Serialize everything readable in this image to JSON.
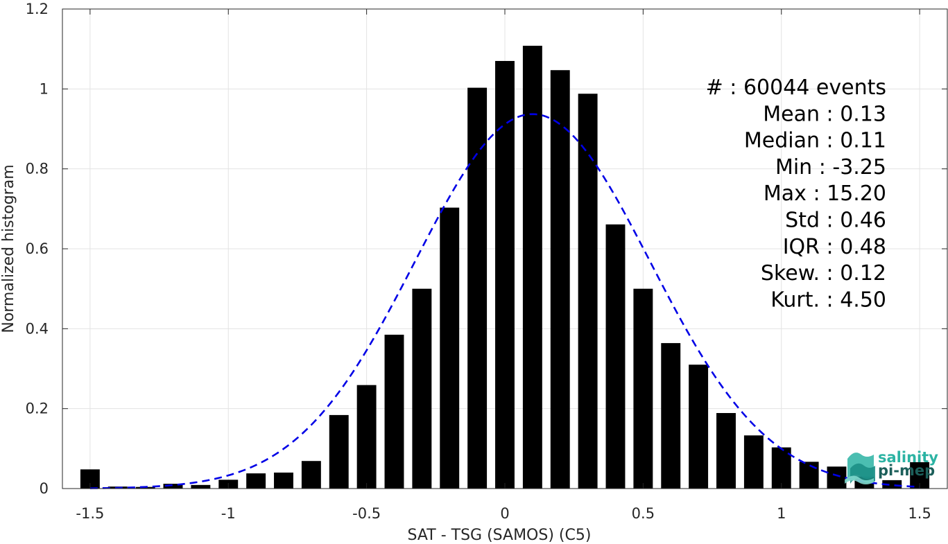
{
  "chart_data": {
    "type": "bar",
    "x": [
      -1.5,
      -1.4,
      -1.3,
      -1.2,
      -1.1,
      -1.0,
      -0.9,
      -0.8,
      -0.7,
      -0.6,
      -0.5,
      -0.4,
      -0.3,
      -0.2,
      -0.1,
      0.0,
      0.1,
      0.2,
      0.3,
      0.4,
      0.5,
      0.6,
      0.7,
      0.8,
      0.9,
      1.0,
      1.1,
      1.2,
      1.3,
      1.4,
      1.5
    ],
    "values": [
      0.048,
      0.005,
      0.004,
      0.012,
      0.009,
      0.022,
      0.038,
      0.04,
      0.069,
      0.184,
      0.259,
      0.385,
      0.5,
      0.703,
      1.003,
      1.07,
      1.108,
      1.047,
      0.988,
      0.661,
      0.5,
      0.364,
      0.31,
      0.189,
      0.133,
      0.103,
      0.067,
      0.055,
      0.03,
      0.021,
      0.066
    ],
    "fit_curve": {
      "mean": 0.1,
      "std": 0.425,
      "peak": 0.937,
      "style": "dashed",
      "color": "#0000e6"
    },
    "title": "",
    "xlabel": "SAT - TSG (SAMOS) (C5)",
    "ylabel": "Normalized histogram",
    "xlim": [
      -1.6,
      1.6
    ],
    "ylim": [
      0,
      1.2
    ],
    "xticks": [
      -1.5,
      -1,
      -0.5,
      0,
      0.5,
      1,
      1.5
    ],
    "xtick_labels": [
      "-1.5",
      "-1",
      "-0.5",
      "0",
      "0.5",
      "1",
      "1.5"
    ],
    "yticks": [
      0,
      0.2,
      0.4,
      0.6,
      0.8,
      1,
      1.2
    ],
    "ytick_labels": [
      "0",
      "0.2",
      "0.4",
      "0.6",
      "0.8",
      "1",
      "1.2"
    ],
    "grid": true,
    "bar_color": "#000000"
  },
  "stats": [
    "#  : 60044 events",
    "Mean : 0.13",
    "Median : 0.11",
    "Min : -3.25",
    "Max : 15.20",
    "Std : 0.46",
    "IQR : 0.48",
    "Skew. : 0.12",
    "Kurt. : 4.50"
  ],
  "logo": {
    "line1": "salinity",
    "line2": "pi-mep",
    "color1": "#2bb3a3",
    "color2": "#1c5f5a"
  }
}
